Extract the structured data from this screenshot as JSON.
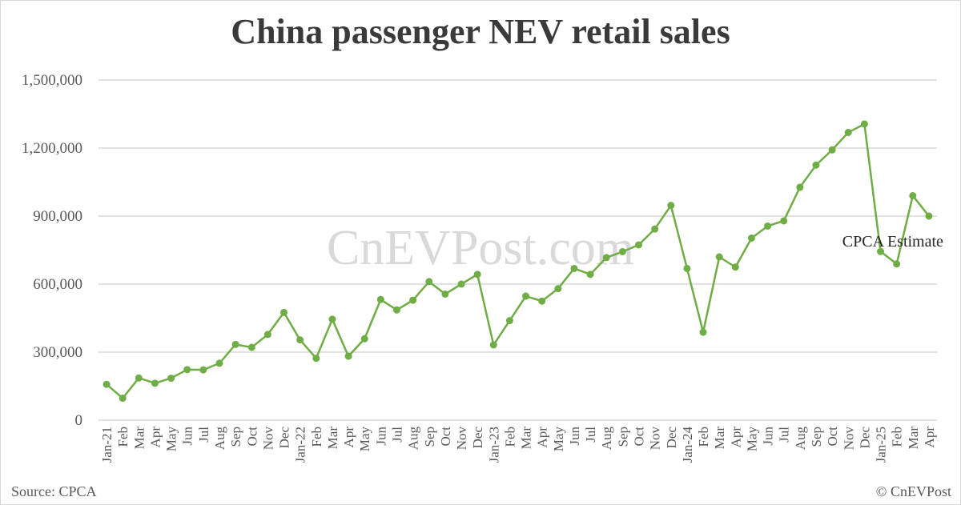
{
  "watermark": "CnEVPost.com",
  "source": "Source: CPCA",
  "copyright": "© CnEVPost",
  "colors": {
    "line": "#70ad47",
    "grid": "#d9d9d9",
    "text": "#595959"
  },
  "chart_data": {
    "type": "line",
    "title": "China passenger NEV retail sales",
    "xlabel": "",
    "ylabel": "",
    "ylim": [
      0,
      1500000
    ],
    "yticks": [
      0,
      300000,
      600000,
      900000,
      1200000,
      1500000
    ],
    "ytick_labels": [
      "0",
      "300,000",
      "600,000",
      "900,000",
      "1,200,000",
      "1,500,000"
    ],
    "grid": true,
    "legend": "none",
    "categories": [
      "Jan-21",
      "Feb",
      "Mar",
      "Apr",
      "May",
      "Jun",
      "Jul",
      "Aug",
      "Sep",
      "Oct",
      "Nov",
      "Dec",
      "Jan-22",
      "Feb",
      "Mar",
      "Apr",
      "May",
      "Jun",
      "Jul",
      "Aug",
      "Sep",
      "Oct",
      "Nov",
      "Dec",
      "Jan-23",
      "Feb",
      "Mar",
      "Apr",
      "May",
      "Jun",
      "Jul",
      "Aug",
      "Sep",
      "Oct",
      "Nov",
      "Dec",
      "Jan-24",
      "Feb",
      "Mar",
      "Apr",
      "May",
      "Jun",
      "Jul",
      "Aug",
      "Sep",
      "Oct",
      "Nov",
      "Dec",
      "Jan-25",
      "Feb",
      "Mar",
      "Apr"
    ],
    "series": [
      {
        "name": "",
        "values": [
          158000,
          97000,
          186000,
          163000,
          185000,
          223000,
          222000,
          251000,
          334000,
          321000,
          378000,
          475000,
          354000,
          273000,
          445000,
          282000,
          359000,
          532000,
          486000,
          529000,
          611000,
          556000,
          600000,
          643000,
          332000,
          439000,
          547000,
          525000,
          580000,
          669000,
          643000,
          717000,
          743000,
          773000,
          843000,
          947000,
          669000,
          388000,
          720000,
          675000,
          803000,
          856000,
          879000,
          1027000,
          1125000,
          1192000,
          1269000,
          1306000,
          744000,
          689000,
          990000,
          900000
        ]
      }
    ],
    "annotations": [
      {
        "text": "CPCA Estimate",
        "point_index": 51
      }
    ]
  }
}
